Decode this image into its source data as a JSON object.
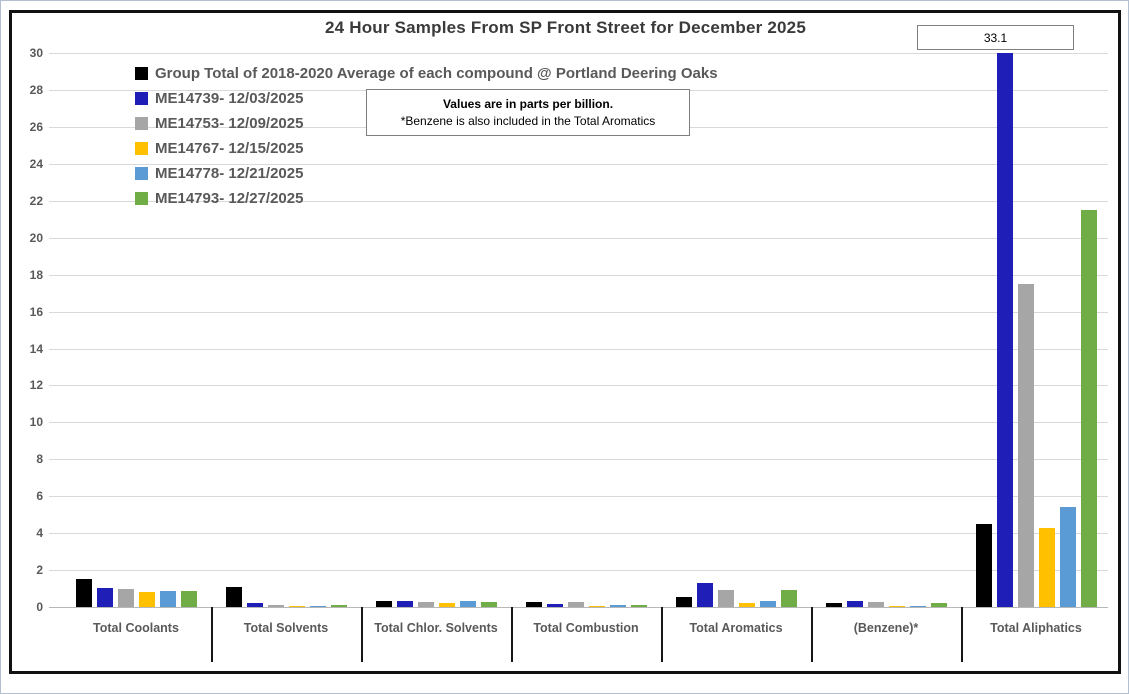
{
  "title": "24 Hour Samples From SP Front Street for December 2025",
  "annotation": {
    "label": "33.1"
  },
  "note": {
    "line1": "Values are in parts per billion.",
    "line2": "*Benzene is also included in the Total Aromatics"
  },
  "chart_data": {
    "type": "bar",
    "title": "24 Hour Samples From SP Front Street for December 2025",
    "categories": [
      "Total Coolants",
      "Total Solvents",
      "Total Chlor. Solvents",
      "Total Combustion",
      "Total Aromatics",
      "(Benzene)*",
      "Total Aliphatics"
    ],
    "series": [
      {
        "name": "Group Total of 2018-2020 Average of each compound @ Portland Deering Oaks",
        "color": "#000000",
        "values": [
          1.5,
          1.1,
          0.35,
          0.25,
          0.55,
          0.2,
          4.5
        ]
      },
      {
        "name": "ME14739- 12/03/2025",
        "color": "#1f1fb8",
        "values": [
          1.05,
          0.2,
          0.33,
          0.15,
          1.3,
          0.3,
          33.1
        ]
      },
      {
        "name": "ME14753- 12/09/2025",
        "color": "#a6a6a6",
        "values": [
          0.95,
          0.12,
          0.25,
          0.25,
          0.9,
          0.25,
          17.5
        ]
      },
      {
        "name": "ME14767- 12/15/2025",
        "color": "#ffc000",
        "values": [
          0.8,
          0.08,
          0.2,
          0.05,
          0.2,
          0.08,
          4.3
        ]
      },
      {
        "name": "ME14778- 12/21/2025",
        "color": "#5b9bd5",
        "values": [
          0.85,
          0.08,
          0.3,
          0.1,
          0.3,
          0.08,
          5.4
        ]
      },
      {
        "name": "ME14793- 12/27/2025",
        "color": "#70ad47",
        "values": [
          0.85,
          0.12,
          0.28,
          0.1,
          0.9,
          0.2,
          21.5
        ]
      }
    ],
    "ylim": [
      0,
      30
    ],
    "ytick_step": 2,
    "grid": true,
    "legend_position": "top-left",
    "values_unit": "parts per billion",
    "clipped_bars": [
      {
        "series": "ME14739- 12/03/2025",
        "category": "Total Aliphatics",
        "value": 33.1,
        "display_label": "33.1",
        "note": "bar clipped at axis max 30"
      }
    ]
  }
}
